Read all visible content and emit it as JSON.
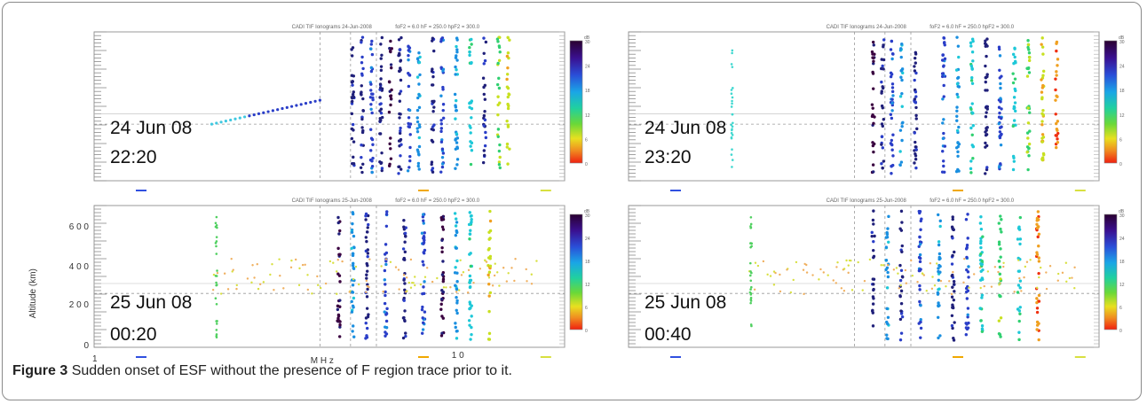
{
  "figure": {
    "label": "Figure 3",
    "caption_text": "Sudden onset of ESF without the presence of F region trace prior to it."
  },
  "axes": {
    "ylabel": "Altitude (km)",
    "xlabel": "M H z",
    "x_tick_1": "1",
    "x_tick_10": "1 0",
    "y_ticks": [
      "0",
      "2 0 0",
      "4 0 0",
      "6 0 0"
    ]
  },
  "panels": [
    {
      "id": "p1",
      "date": "24 Jun 08",
      "time": "22:20",
      "title_small": "CADI TIF Ionograms     24-Jun-2008",
      "params": "foF2 = 6.0  hF = 250.0  hpF2 = 300.0"
    },
    {
      "id": "p2",
      "date": "24 Jun 08",
      "time": "23:20",
      "title_small": "CADI TIF Ionograms     24-Jun-2008",
      "params": "foF2 = 6.0  hF = 250.0  hpF2 = 300.0"
    },
    {
      "id": "p3",
      "date": "25 Jun 08",
      "time": "00:20",
      "title_small": "CADI TIF Ionograms     25-Jun-2008",
      "params": "foF2 = 6.0  hF = 250.0  hpF2 = 300.0"
    },
    {
      "id": "p4",
      "date": "25 Jun 08",
      "time": "00:40",
      "title_small": "CADI TIF Ionograms     25-Jun-2008",
      "params": "foF2 = 6.0  hF = 250.0  hpF2 = 300.0"
    }
  ],
  "colorbar": {
    "unit": "dB",
    "labels": [
      "30",
      "24",
      "18",
      "12",
      "6",
      "0"
    ]
  },
  "colors": {
    "scale": [
      "#3a0040",
      "#20207a",
      "#2a3ec8",
      "#1a8fe0",
      "#1ec8d8",
      "#30d070",
      "#c8e020",
      "#f0a020",
      "#f03010"
    ]
  }
}
